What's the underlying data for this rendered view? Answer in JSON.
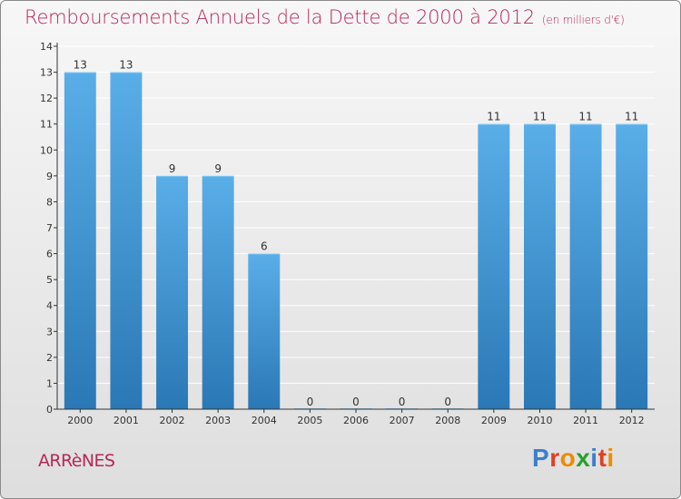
{
  "header": {
    "title": "Remboursements Annuels de la Dette de 2000 à 2012",
    "subtitle": "(en milliers d'€)"
  },
  "footer": {
    "commune": "ARRèNES",
    "logo_text": "Proxiti",
    "logo_colors": [
      "#3a7fd0",
      "#e04020",
      "#f08a00",
      "#2aa02a",
      "#3a7fd0",
      "#e04020",
      "#f08a00"
    ]
  },
  "colors": {
    "bar_light": "#5aaee8",
    "bar_dark": "#2a78b5",
    "title": "#b5285a",
    "axis": "#333333"
  },
  "chart_data": {
    "type": "bar",
    "title": "Remboursements Annuels de la Dette de 2000 à 2012",
    "subtitle": "(en milliers d'€)",
    "categories": [
      "2000",
      "2001",
      "2002",
      "2003",
      "2004",
      "2005",
      "2006",
      "2007",
      "2008",
      "2009",
      "2010",
      "2011",
      "2012"
    ],
    "values": [
      13,
      13,
      9,
      9,
      6,
      0,
      0,
      0,
      0,
      11,
      11,
      11,
      11
    ],
    "data_labels": [
      "13",
      "13",
      "9",
      "9",
      "6",
      "0",
      "0",
      "0",
      "0",
      "11",
      "11",
      "11",
      "11"
    ],
    "yticks": [
      "0",
      "1",
      "2",
      "3",
      "4",
      "5",
      "6",
      "7",
      "8",
      "9",
      "10",
      "11",
      "12",
      "13",
      "14"
    ],
    "ylim": [
      0,
      14
    ],
    "grid": true,
    "legend": "none"
  }
}
